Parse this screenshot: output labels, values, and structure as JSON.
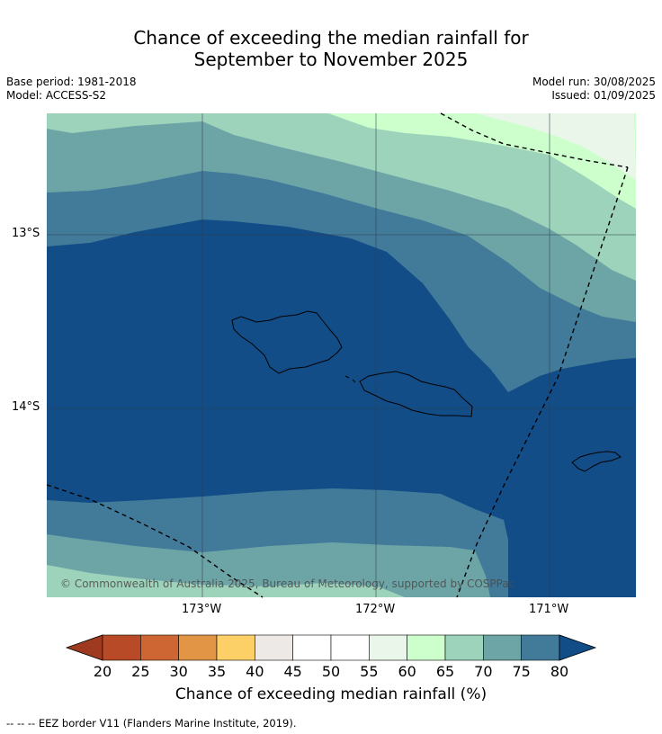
{
  "header": {
    "title_line1": "Chance of exceeding the median rainfall for",
    "title_line2": "September to November 2025",
    "base_period": "Base period: 1981-2018",
    "model": "Model: ACCESS-S2",
    "model_run": "Model run: 30/08/2025",
    "issued": "Issued: 01/09/2025"
  },
  "map": {
    "lat_labels": [
      "13°S",
      "14°S"
    ],
    "lon_labels": [
      "173°W",
      "172°W",
      "171°W"
    ],
    "copyright": "© Commonwealth of Australia 2025, Bureau of Meteorology, supported by COSPPac"
  },
  "colorbar": {
    "ticks": [
      "20",
      "25",
      "30",
      "35",
      "40",
      "45",
      "50",
      "55",
      "60",
      "65",
      "70",
      "75",
      "80"
    ],
    "colors": [
      "#9e3a20",
      "#b84a28",
      "#cd6633",
      "#e19545",
      "#fccf67",
      "#ede9e6",
      "#ffffff",
      "#ffffff",
      "#eaf6ea",
      "#ccffcc",
      "#9ed3bb",
      "#6da5a7",
      "#427b9a",
      "#134d87"
    ],
    "label": "Chance of exceeding median rainfall (%)"
  },
  "footnote": "--  --  -- EEZ border V11 (Flanders Marine Institute, 2019)."
}
